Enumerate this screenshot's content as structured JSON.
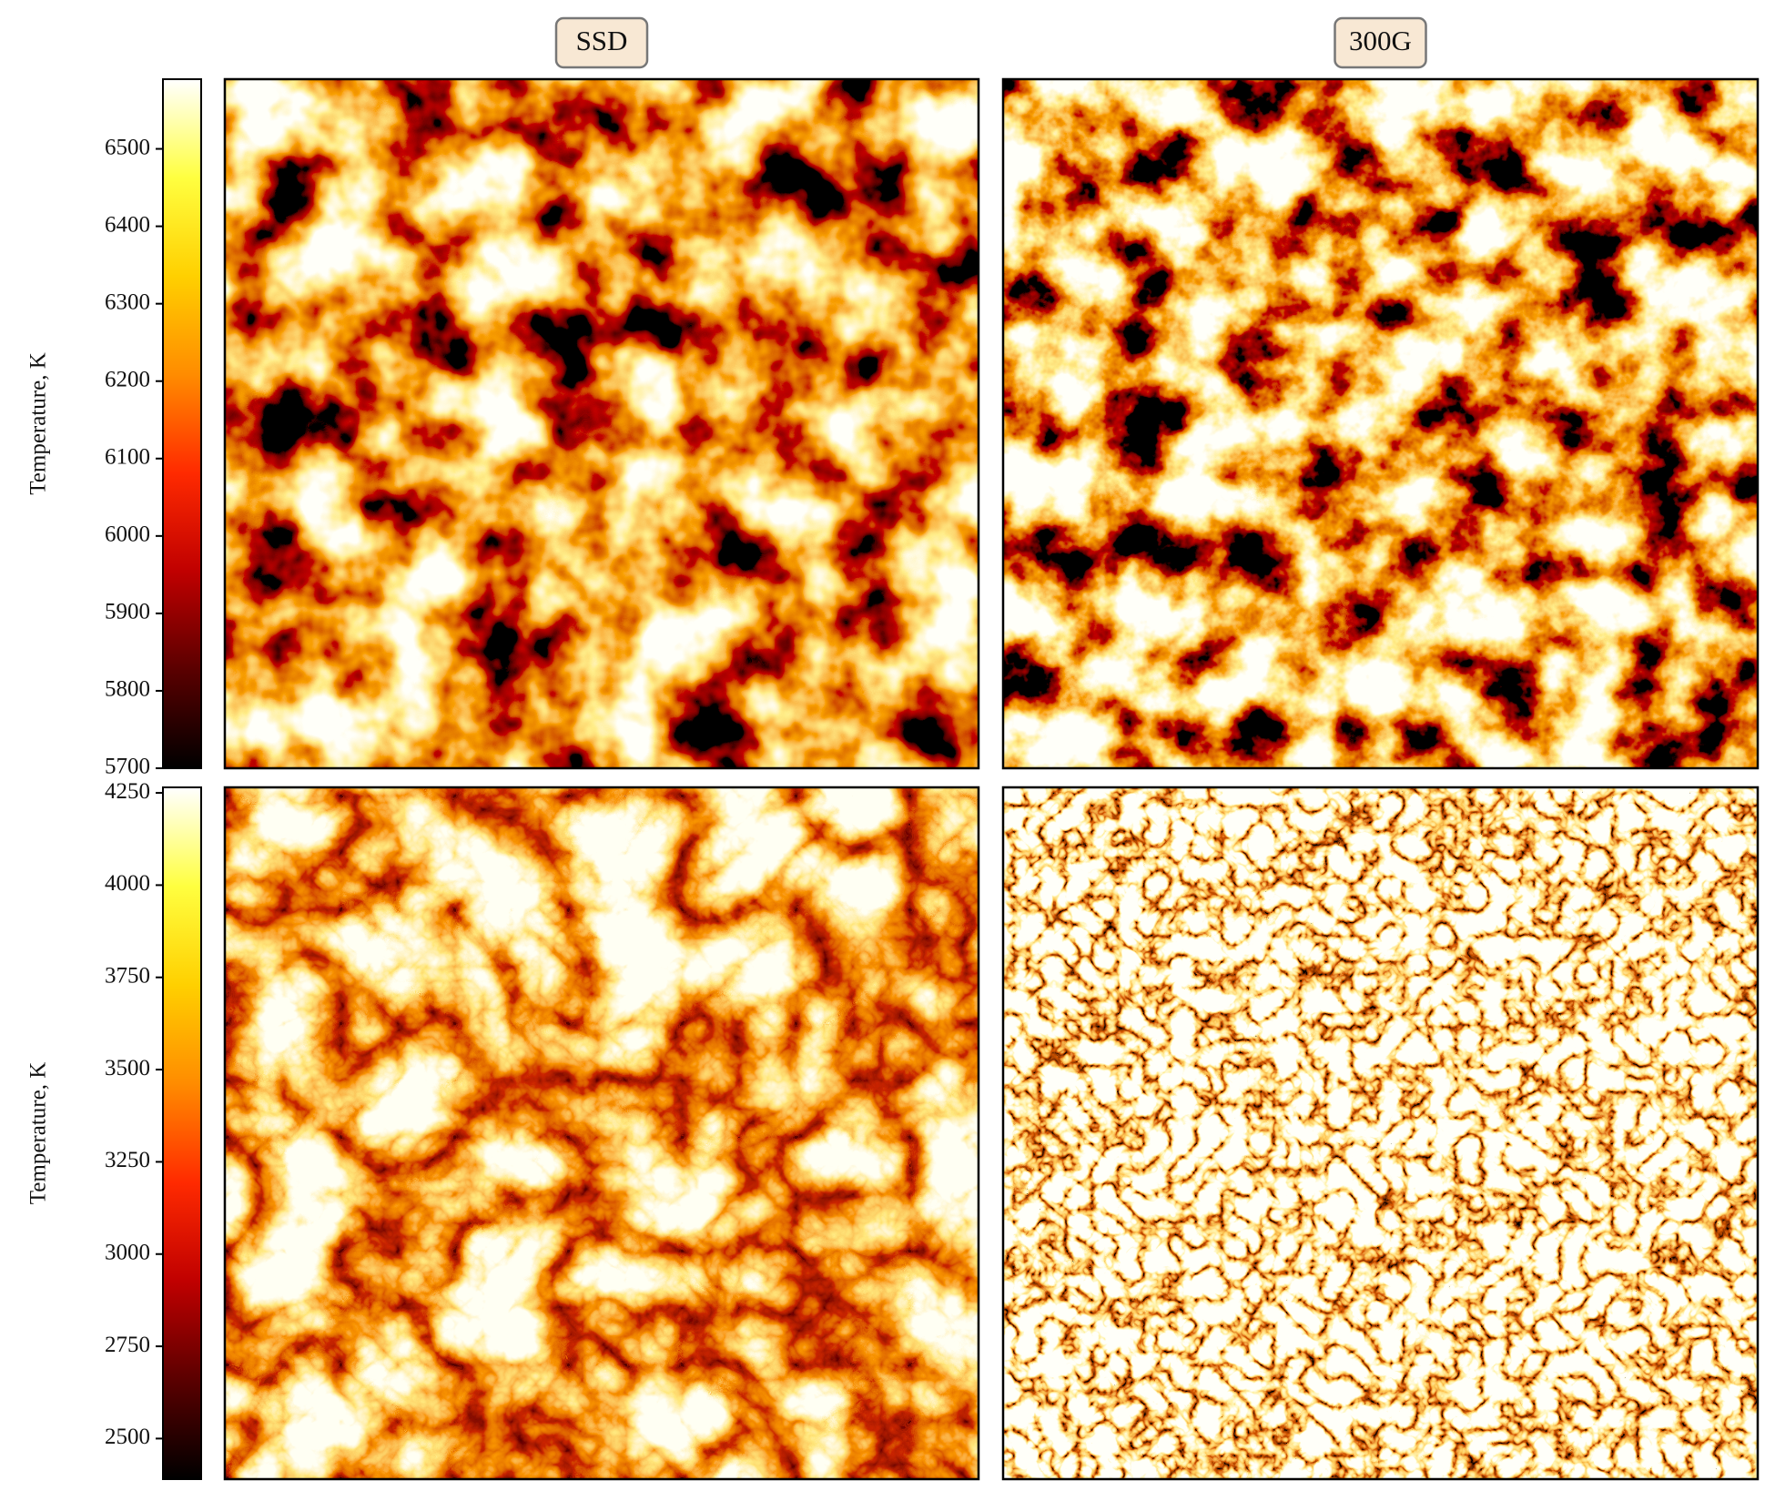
{
  "chart_data": {
    "type": "heatmap",
    "columns": [
      "SSD",
      "300G"
    ],
    "colormap": "hot",
    "rows": [
      {
        "colorbar_label": "Temperature, K",
        "zlim": [
          5700,
          6590
        ],
        "zticks": [
          5700,
          5800,
          5900,
          6000,
          6100,
          6200,
          6300,
          6400,
          6500
        ]
      },
      {
        "colorbar_label": "Temperature, K",
        "zlim": [
          2390,
          4265
        ],
        "zticks": [
          2500,
          2750,
          3000,
          3250,
          3500,
          3750,
          4000,
          4250
        ]
      }
    ]
  }
}
